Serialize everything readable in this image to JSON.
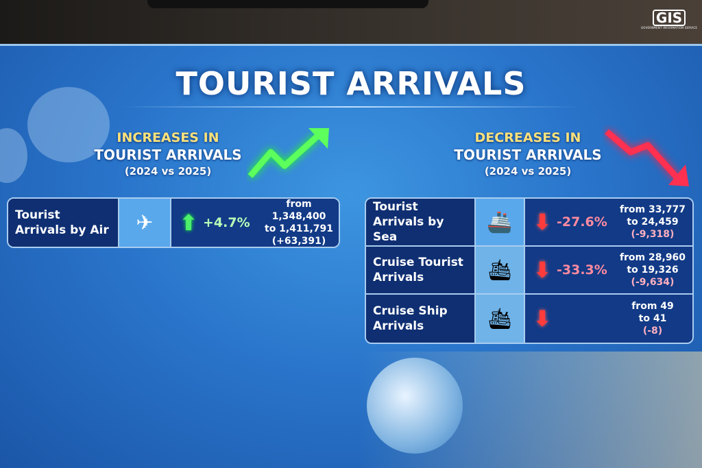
{
  "logo": {
    "text": "GIS",
    "subtitle": "GOVERNMENT INFORMATION SERVICE"
  },
  "title": "TOURIST ARRIVALS",
  "increases": {
    "heading_line1": "INCREASES IN",
    "heading_line2": "TOURIST ARRIVALS",
    "period": "(2024 vs 2025)",
    "trend_icon": "arrow-trend-up-icon",
    "rows": [
      {
        "label": "Tourist Arrivals by Air",
        "icon": "airplane-icon",
        "change": "+4.7%",
        "from": "from 1,348,400",
        "to": "to 1,411,791",
        "diff": "(+63,391)"
      }
    ]
  },
  "decreases": {
    "heading_line1": "DECREASES IN",
    "heading_line2": "TOURIST ARRIVALS",
    "period": "(2024 vs 2025)",
    "trend_icon": "arrow-trend-down-icon",
    "rows": [
      {
        "label": "Tourist Arrivals by Sea",
        "icon": "ship-icon",
        "change": "-27.6%",
        "from": "from 33,777",
        "to": "to 24,459",
        "diff": "(-9,318)"
      },
      {
        "label": "Cruise Tourist Arrivals",
        "icon": "cruise-ship-icon",
        "change": "-33.3%",
        "from": "from 28,960",
        "to": "to 19,326",
        "diff": "(-9,634)"
      },
      {
        "label": "Cruise Ship Arrivals",
        "icon": "cruise-ship-icon",
        "change": "",
        "from": "from 49",
        "to": "to 41",
        "diff": "(-8)"
      }
    ]
  },
  "colors": {
    "increase": "#4cf06a",
    "decrease": "#ff3b3b",
    "heading": "#ffe27a",
    "background": "#2a76cc"
  }
}
